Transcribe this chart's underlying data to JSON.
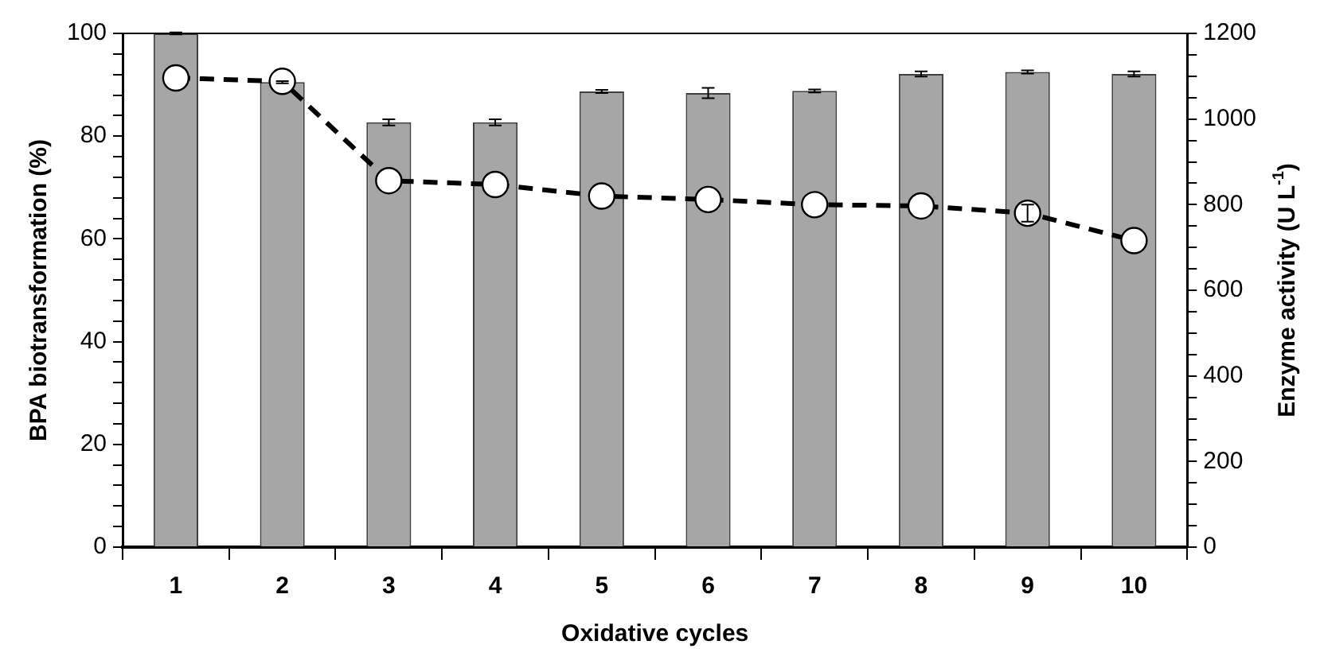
{
  "chart_data": {
    "type": "bar",
    "xlabel": "Oxidative cycles",
    "ylabel": "BPA biotransformation (%)",
    "y2label": "Enzyme activity (U L$^{-1}$)",
    "categories": [
      "1",
      "2",
      "3",
      "4",
      "5",
      "6",
      "7",
      "8",
      "9",
      "10"
    ],
    "series": [
      {
        "color": "#a6a6a6",
        "values": [
          100,
          90.5,
          82.7,
          82.7,
          88.7,
          88.4,
          88.8,
          92.1,
          92.5,
          92.1
        ],
        "errors": [
          0.2,
          0.2,
          0.6,
          0.6,
          0.3,
          1,
          0.3,
          0.5,
          0.3,
          0.5
        ]
      },
      {
        "type": "line",
        "axis": "y2",
        "color": "#000000",
        "marker": "circle",
        "line_style": "dashed",
        "values": [
          1096,
          1088,
          856,
          847,
          820,
          812,
          800,
          797,
          780,
          716
        ],
        "errors": [
          null,
          null,
          null,
          null,
          null,
          null,
          null,
          null,
          20,
          null
        ]
      }
    ],
    "ylim": [
      0,
      100
    ],
    "yticks": [
      0,
      {
        "value": 4,
        "label": null
      },
      {
        "value": 8,
        "label": null
      },
      {
        "value": 12,
        "label": null
      },
      {
        "value": 16,
        "label": null
      },
      20,
      {
        "value": 24,
        "label": null
      },
      {
        "value": 28,
        "label": null
      },
      {
        "value": 32,
        "label": null
      },
      {
        "value": 36,
        "label": null
      },
      40,
      {
        "value": 44,
        "label": null
      },
      {
        "value": 48,
        "label": null
      },
      {
        "value": 52,
        "label": null
      },
      {
        "value": 56,
        "label": null
      },
      60,
      {
        "value": 64,
        "label": null
      },
      {
        "value": 68,
        "label": null
      },
      {
        "value": 72,
        "label": null
      },
      {
        "value": 76,
        "label": null
      },
      80,
      {
        "value": 84,
        "label": null
      },
      {
        "value": 88,
        "label": null
      },
      {
        "value": 92,
        "label": null
      },
      {
        "value": 96,
        "label": null
      },
      100
    ],
    "y2lim": [
      0,
      1200
    ],
    "y2ticks": [
      0,
      {
        "value": 50,
        "label": null
      },
      {
        "value": 100,
        "label": null
      },
      {
        "value": 150,
        "label": null
      },
      200,
      {
        "value": 250,
        "label": null
      },
      {
        "value": 300,
        "label": null
      },
      {
        "value": 350,
        "label": null
      },
      400,
      {
        "value": 450,
        "label": null
      },
      {
        "value": 500,
        "label": null
      },
      {
        "value": 550,
        "label": null
      },
      600,
      {
        "value": 650,
        "label": null
      },
      {
        "value": 700,
        "label": null
      },
      {
        "value": 750,
        "label": null
      },
      800,
      {
        "value": 850,
        "label": null
      },
      {
        "value": 900,
        "label": null
      },
      {
        "value": 950,
        "label": null
      },
      1000,
      {
        "value": 1050,
        "label": null
      },
      {
        "value": 1100,
        "label": null
      },
      {
        "value": 1150,
        "label": null
      },
      1200
    ],
    "grid": false,
    "legend": false
  }
}
